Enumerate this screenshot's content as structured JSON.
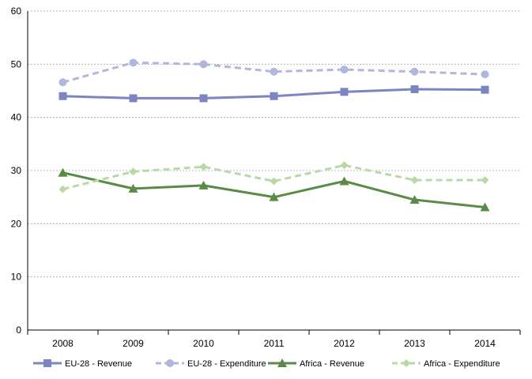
{
  "chart_data": {
    "type": "line",
    "title": "",
    "xlabel": "",
    "ylabel": "",
    "categories": [
      "2008",
      "2009",
      "2010",
      "2011",
      "2012",
      "2013",
      "2014"
    ],
    "ylim": [
      0,
      60
    ],
    "yticks": [
      0,
      10,
      20,
      30,
      40,
      50,
      60
    ],
    "grid": "horizontal dashed",
    "legend": "bottom",
    "series": [
      {
        "name": "EU-28 - Revenue",
        "values": [
          44.0,
          43.6,
          43.6,
          44.0,
          44.8,
          45.3,
          45.2
        ],
        "color": "#7b86c0",
        "dashed": false,
        "marker": "square"
      },
      {
        "name": "EU-28 -  Expenditure",
        "values": [
          46.6,
          50.3,
          50.0,
          48.6,
          49.0,
          48.6,
          48.1
        ],
        "color": "#b0b6dd",
        "dashed": true,
        "marker": "circle"
      },
      {
        "name": "Africa - Revenue",
        "values": [
          29.6,
          26.6,
          27.2,
          25.0,
          28.0,
          24.5,
          23.1
        ],
        "color": "#5a8a45",
        "dashed": false,
        "marker": "triangle"
      },
      {
        "name": "Africa - Expenditure",
        "values": [
          26.5,
          29.8,
          30.7,
          28.0,
          31.0,
          28.2,
          28.2
        ],
        "color": "#b7d9a3",
        "dashed": true,
        "marker": "diamond"
      }
    ]
  }
}
